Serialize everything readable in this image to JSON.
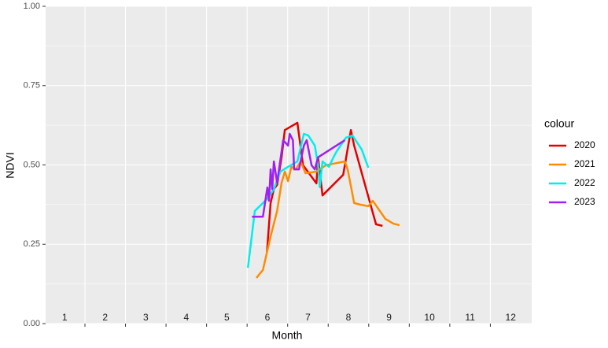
{
  "chart_data": {
    "type": "line",
    "xlabel": "Month",
    "ylabel": "NDVI",
    "legend_title": "colour",
    "legend_position": "right",
    "xlim": [
      0.53,
      12.52
    ],
    "ylim": [
      0,
      1
    ],
    "xticks": [
      1,
      2,
      3,
      4,
      5,
      6,
      7,
      8,
      9,
      10,
      11,
      12
    ],
    "x_grid": [
      1.5,
      2.5,
      3.5,
      4.5,
      5.5,
      6.5,
      7.5,
      8.5,
      9.5,
      10.5,
      11.5
    ],
    "yticks": [
      {
        "value": 0,
        "label": "0.00"
      },
      {
        "value": 0.25,
        "label": "0.25"
      },
      {
        "value": 0.5,
        "label": "0.50"
      },
      {
        "value": 0.75,
        "label": "0.75"
      },
      {
        "value": 1,
        "label": "1.00"
      }
    ],
    "y_minor_grid": [
      0.125,
      0.375,
      0.625,
      0.875
    ],
    "grid": true,
    "series": [
      {
        "name": "2020",
        "color": "#e60000",
        "x": [
          5.99,
          6.08,
          6.16,
          6.24,
          6.35,
          6.43,
          6.74,
          6.88,
          7.21,
          7.25,
          7.36,
          7.87,
          8.06,
          8.14,
          8.49,
          8.68,
          8.84
        ],
        "values": [
          0.226,
          0.38,
          0.424,
          0.437,
          0.524,
          0.61,
          0.633,
          0.499,
          0.442,
          0.524,
          0.404,
          0.469,
          0.61,
          0.561,
          0.4,
          0.313,
          0.308
        ]
      },
      {
        "name": "2021",
        "color": "#ff8c00",
        "x": [
          5.73,
          5.89,
          6.08,
          6.24,
          6.35,
          6.43,
          6.51,
          6.59,
          6.7,
          6.82,
          6.94,
          7.21,
          7.29,
          7.44,
          7.91,
          7.98,
          8.14,
          8.29,
          8.49,
          8.6,
          8.91,
          9.11,
          9.26
        ],
        "values": [
          0.144,
          0.169,
          0.275,
          0.355,
          0.444,
          0.479,
          0.449,
          0.494,
          0.486,
          0.511,
          0.474,
          0.479,
          0.486,
          0.499,
          0.511,
          0.486,
          0.38,
          0.375,
          0.37,
          0.387,
          0.33,
          0.315,
          0.31
        ]
      },
      {
        "name": "2022",
        "color": "#00eeee",
        "x": [
          5.52,
          5.69,
          5.89,
          6.04,
          6.16,
          6.32,
          6.51,
          6.74,
          6.9,
          7.01,
          7.17,
          7.25,
          7.29,
          7.36,
          7.52,
          7.63,
          7.71,
          7.94,
          8.1,
          8.33,
          8.49
        ],
        "values": [
          0.176,
          0.355,
          0.38,
          0.4,
          0.424,
          0.479,
          0.494,
          0.511,
          0.598,
          0.593,
          0.561,
          0.5,
          0.43,
          0.511,
          0.494,
          0.524,
          0.543,
          0.586,
          0.593,
          0.548,
          0.491
        ]
      },
      {
        "name": "2023",
        "color": "#a020f0",
        "x": [
          5.62,
          5.89,
          6.0,
          6.04,
          6.08,
          6.12,
          6.16,
          6.24,
          6.39,
          6.51,
          6.55,
          6.63,
          6.66,
          6.78,
          6.9,
          6.97,
          7.09,
          7.17,
          7.25,
          7.91
        ],
        "values": [
          0.337,
          0.337,
          0.429,
          0.387,
          0.486,
          0.424,
          0.511,
          0.444,
          0.578,
          0.561,
          0.598,
          0.578,
          0.486,
          0.486,
          0.561,
          0.578,
          0.499,
          0.486,
          0.524,
          0.578
        ]
      }
    ]
  }
}
